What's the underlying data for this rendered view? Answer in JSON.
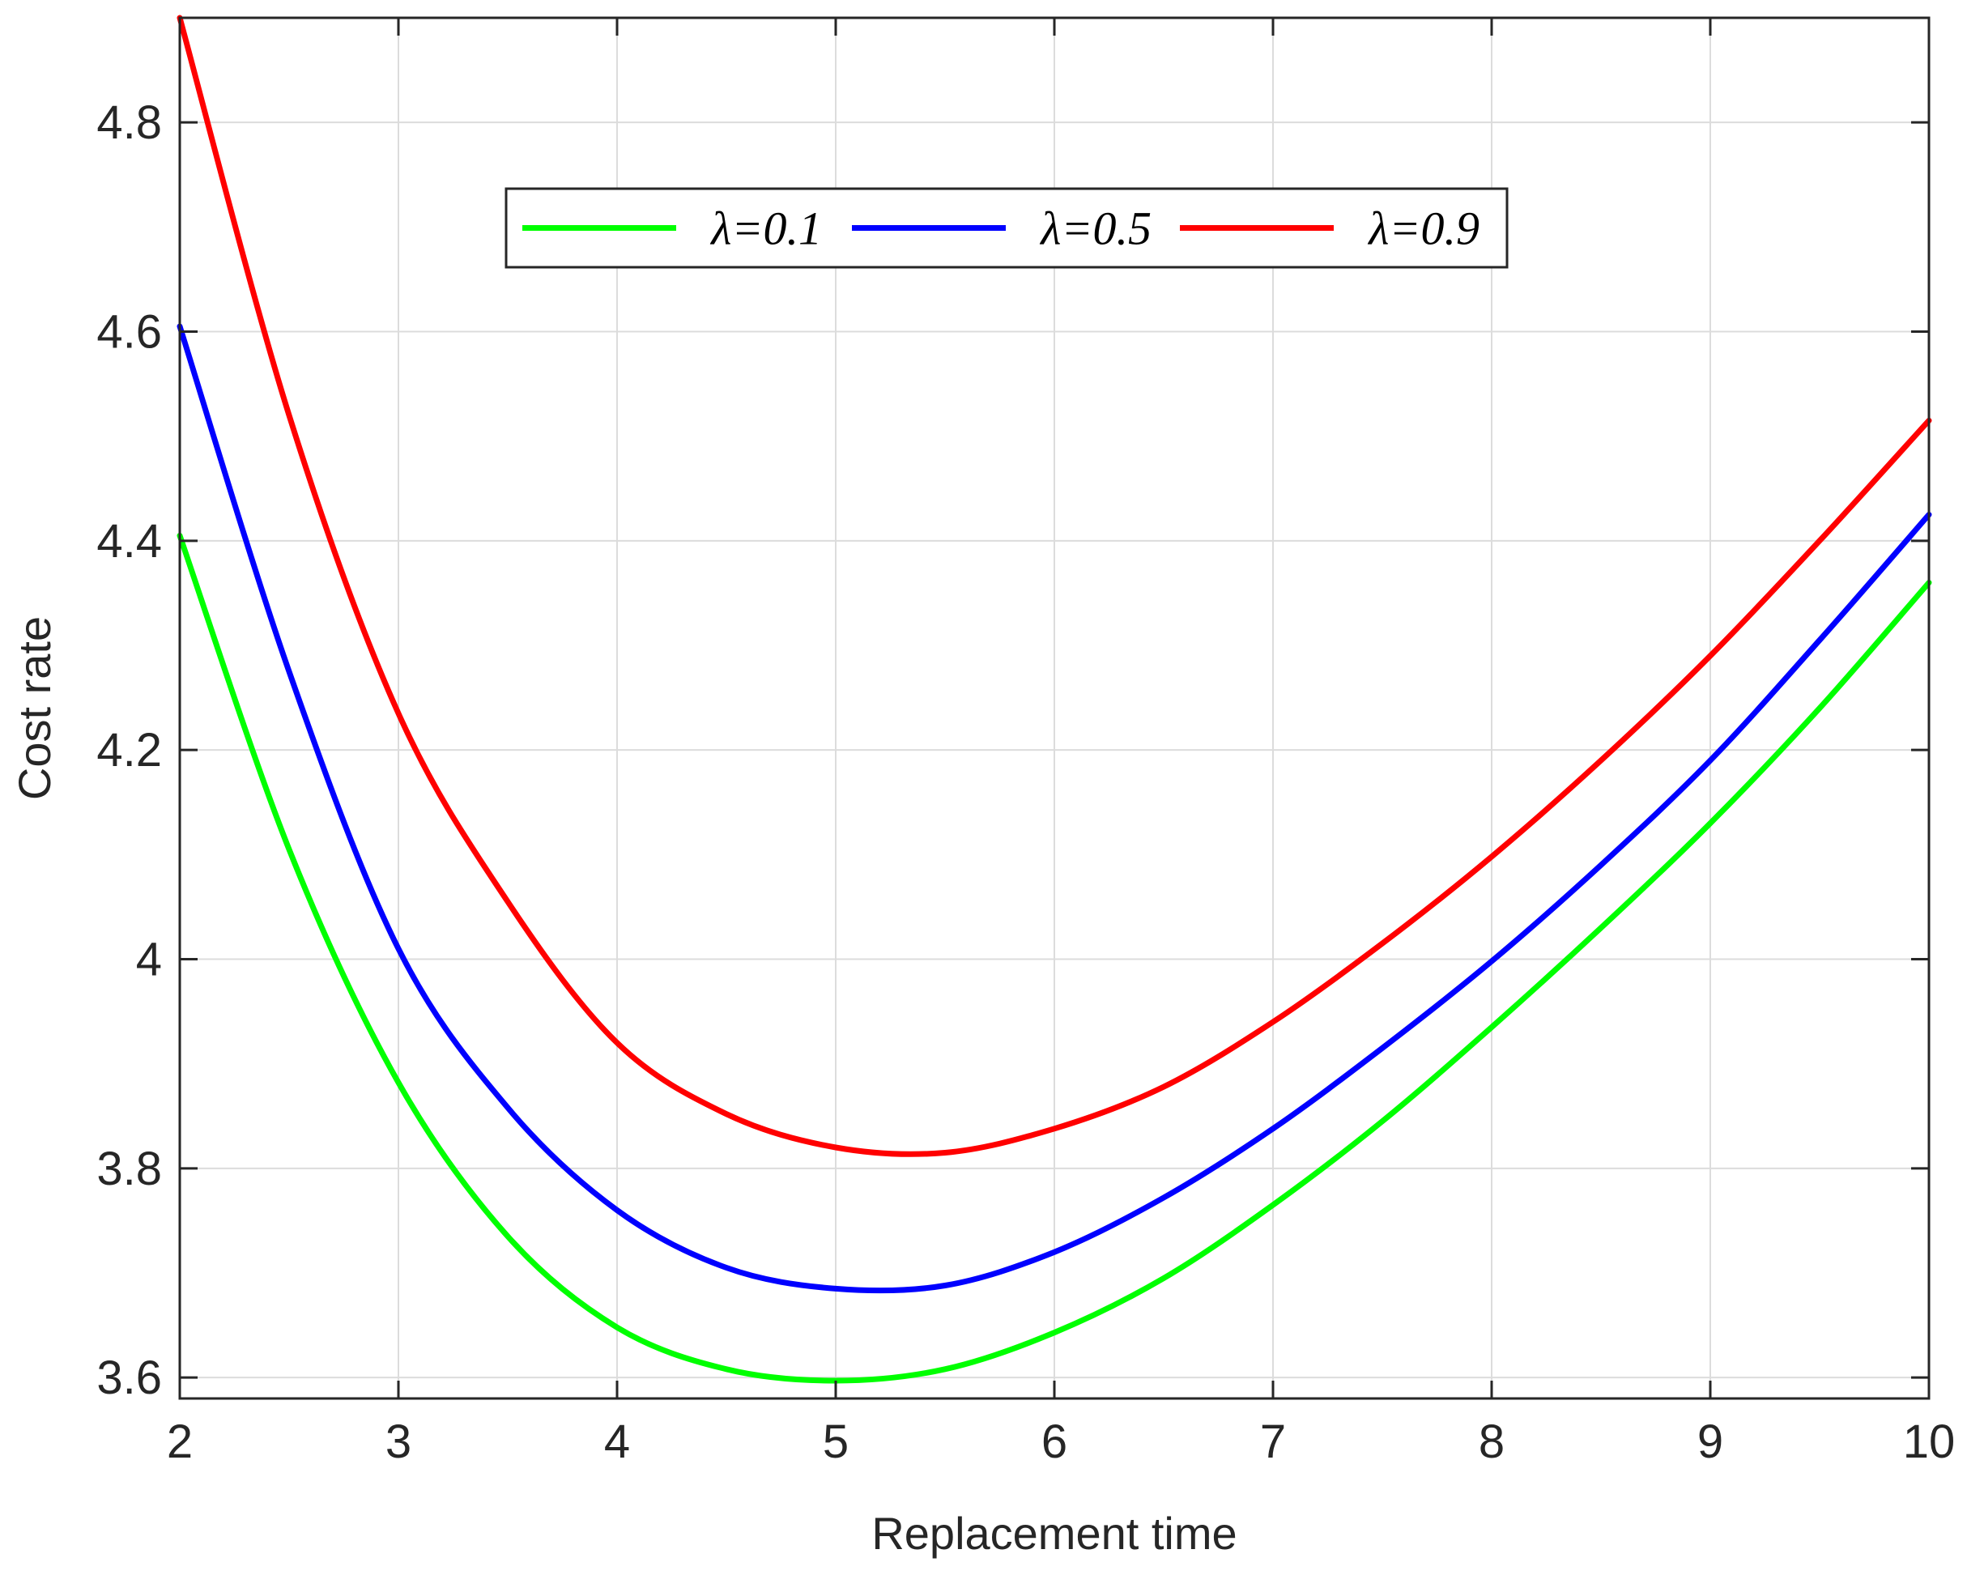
{
  "chart_data": {
    "type": "line",
    "title": "",
    "xlabel": "Replacement time",
    "ylabel": "Cost rate",
    "xlim": [
      2,
      10
    ],
    "ylim": [
      3.58,
      4.9
    ],
    "xticks": [
      2,
      3,
      4,
      5,
      6,
      7,
      8,
      9,
      10
    ],
    "xtick_labels": [
      "2",
      "3",
      "4",
      "5",
      "6",
      "7",
      "8",
      "9",
      "10"
    ],
    "yticks": [
      3.6,
      3.8,
      4.0,
      4.2,
      4.4,
      4.6,
      4.8
    ],
    "ytick_labels": [
      "3.6",
      "3.8",
      "4",
      "4.2",
      "4.4",
      "4.6",
      "4.8"
    ],
    "grid": true,
    "legend_position": "top-center",
    "legend_orientation": "horizontal",
    "x": [
      2,
      2.5,
      3,
      3.5,
      4,
      4.5,
      5,
      5.5,
      6,
      6.5,
      7,
      7.5,
      8,
      8.5,
      9,
      9.5,
      10
    ],
    "series": [
      {
        "name": "λ=0.1",
        "color": "#00ff00",
        "values": [
          4.405,
          4.105,
          3.882,
          3.735,
          3.648,
          3.608,
          3.597,
          3.608,
          3.643,
          3.695,
          3.765,
          3.845,
          3.935,
          4.03,
          4.13,
          4.24,
          4.36
        ]
      },
      {
        "name": "λ=0.5",
        "color": "#0000ff",
        "values": [
          4.605,
          4.275,
          4.01,
          3.858,
          3.76,
          3.705,
          3.685,
          3.688,
          3.72,
          3.772,
          3.838,
          3.915,
          3.998,
          4.09,
          4.19,
          4.305,
          4.425
        ]
      },
      {
        "name": "λ=0.9",
        "color": "#ff0000",
        "values": [
          4.9,
          4.52,
          4.235,
          4.055,
          3.92,
          3.852,
          3.82,
          3.815,
          3.838,
          3.878,
          3.94,
          4.015,
          4.098,
          4.19,
          4.29,
          4.4,
          4.515
        ]
      }
    ]
  }
}
